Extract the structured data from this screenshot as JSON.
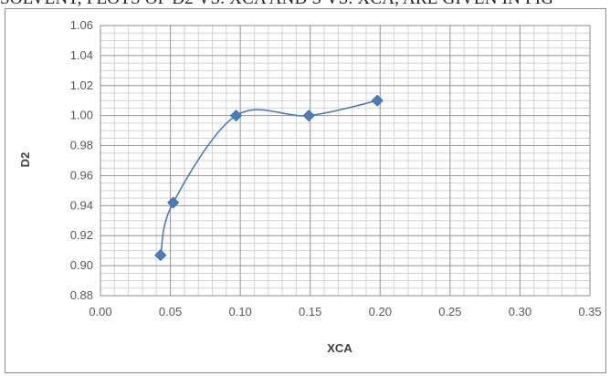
{
  "header_text": "SOLVENT, PLOTS OF D2 VS. XCA AND S VS. XCA, ARE GIVEN IN FIG",
  "chart_data": {
    "type": "scatter",
    "title": "",
    "xlabel": "XCA",
    "ylabel": "D2",
    "xlim": [
      0.0,
      0.35
    ],
    "ylim": [
      0.88,
      1.06
    ],
    "x_major_ticks": [
      0.0,
      0.05,
      0.1,
      0.15,
      0.2,
      0.25,
      0.3,
      0.35
    ],
    "y_major_ticks": [
      0.88,
      0.9,
      0.92,
      0.94,
      0.96,
      0.98,
      1.0,
      1.02,
      1.04,
      1.06
    ],
    "x_tick_labels": [
      "0.00",
      "0.05",
      "0.10",
      "0.15",
      "0.20",
      "0.25",
      "0.30",
      "0.35"
    ],
    "y_tick_labels": [
      "0.88",
      "0.90",
      "0.92",
      "0.94",
      "0.96",
      "0.98",
      "1.00",
      "1.02",
      "1.04",
      "1.06"
    ],
    "x_minor_step": 0.01,
    "y_minor_step": 0.005,
    "grid": true,
    "smooth_line": true,
    "marker": "diamond",
    "series": [
      {
        "x": [
          0.043,
          0.052,
          0.097,
          0.149,
          0.198
        ],
        "y": [
          0.907,
          0.942,
          1.0,
          1.0,
          1.01
        ],
        "color": "#4a7ebb"
      }
    ]
  },
  "colors": {
    "series": "#4a7ebb",
    "grid_major": "#9a9a9a",
    "grid_minor": "#d4d4d4"
  }
}
